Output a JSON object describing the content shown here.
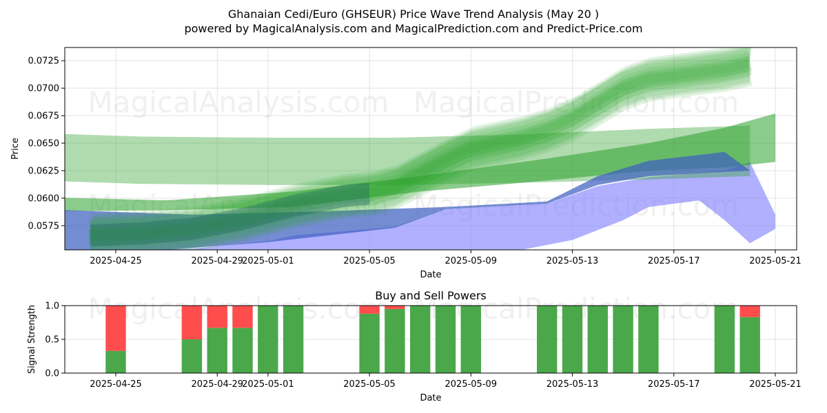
{
  "title_line1": "Ghanaian Cedi/Euro (GHSEUR) Price Wave Trend Analysis (May 20 )",
  "title_line2": "powered by MagicalAnalysis.com and MagicalPrediction.com and Predict-Price.com",
  "watermarks": [
    "MagicalAnalysis.com",
    "MagicalPrediction.com"
  ],
  "chart_data": [
    {
      "type": "area",
      "xlabel": "Date",
      "ylabel": "Price",
      "ylim": [
        0.0553,
        0.0737
      ],
      "grid": true,
      "x_ticks": [
        "2025-04-25",
        "2025-04-29",
        "2025-05-01",
        "2025-05-05",
        "2025-05-09",
        "2025-05-13",
        "2025-05-17",
        "2025-05-21"
      ],
      "y_ticks": [
        "0.0575",
        "0.0600",
        "0.0625",
        "0.0650",
        "0.0675",
        "0.0700",
        "0.0725"
      ],
      "colors": {
        "green_band": "#2ca02c",
        "blue_band": "#3f5fbf",
        "purple_band": "#8080ff"
      },
      "series": [
        {
          "color": "#2ca02c",
          "upper": [
            [
              "2025-04-22",
              0.0659
            ],
            [
              "2025-04-26",
              0.0656
            ],
            [
              "2025-05-01",
              0.0655
            ],
            [
              "2025-05-06",
              0.0655
            ],
            [
              "2025-05-11",
              0.0658
            ],
            [
              "2025-05-16",
              0.0663
            ],
            [
              "2025-05-20",
              0.0666
            ]
          ],
          "lower": [
            [
              "2025-04-22",
              0.0616
            ],
            [
              "2025-04-26",
              0.0613
            ],
            [
              "2025-05-01",
              0.0612
            ],
            [
              "2025-05-06",
              0.0612
            ],
            [
              "2025-05-11",
              0.0614
            ],
            [
              "2025-05-16",
              0.0617
            ],
            [
              "2025-05-20",
              0.062
            ]
          ]
        },
        {
          "color": "#2ca02c",
          "upper": [
            [
              "2025-04-22",
              0.0601
            ],
            [
              "2025-04-27",
              0.0598
            ],
            [
              "2025-05-02",
              0.0606
            ],
            [
              "2025-05-07",
              0.062
            ],
            [
              "2025-05-12",
              0.0636
            ],
            [
              "2025-05-16",
              0.065
            ],
            [
              "2025-05-19",
              0.0664
            ],
            [
              "2025-05-21",
              0.0677
            ]
          ],
          "lower": [
            [
              "2025-04-22",
              0.0588
            ],
            [
              "2025-04-27",
              0.0589
            ],
            [
              "2025-05-02",
              0.0592
            ],
            [
              "2025-05-07",
              0.0606
            ],
            [
              "2025-05-12",
              0.0616
            ],
            [
              "2025-05-16",
              0.0625
            ],
            [
              "2025-05-19",
              0.0628
            ],
            [
              "2025-05-21",
              0.0633
            ]
          ]
        },
        {
          "color": "#3f5fbf",
          "upper": [
            [
              "2025-04-22",
              0.059
            ],
            [
              "2025-04-28",
              0.0585
            ],
            [
              "2025-05-03",
              0.0588
            ],
            [
              "2025-05-08",
              0.0592
            ],
            [
              "2025-05-12",
              0.0597
            ],
            [
              "2025-05-14",
              0.062
            ],
            [
              "2025-05-16",
              0.0634
            ],
            [
              "2025-05-19",
              0.0642
            ],
            [
              "2025-05-20",
              0.0625
            ]
          ],
          "lower": [
            [
              "2025-04-22",
              0.0553
            ],
            [
              "2025-04-27",
              0.0553
            ],
            [
              "2025-05-01",
              0.056
            ],
            [
              "2025-05-06",
              0.0573
            ],
            [
              "2025-05-08",
              0.059
            ],
            [
              "2025-05-12",
              0.0595
            ],
            [
              "2025-05-14",
              0.0612
            ],
            [
              "2025-05-16",
              0.062
            ],
            [
              "2025-05-19",
              0.0624
            ]
          ]
        },
        {
          "color": "#8080ff",
          "upper": [
            [
              "2025-04-26",
              0.0553
            ],
            [
              "2025-04-28",
              0.0554
            ],
            [
              "2025-05-01",
              0.0561
            ],
            [
              "2025-05-02",
              0.0566
            ],
            [
              "2025-05-06",
              0.0574
            ],
            [
              "2025-05-08",
              0.059
            ],
            [
              "2025-05-12",
              0.0595
            ],
            [
              "2025-05-14",
              0.0611
            ],
            [
              "2025-05-16",
              0.0619
            ],
            [
              "2025-05-19",
              0.0625
            ],
            [
              "2025-05-20",
              0.0633
            ],
            [
              "2025-05-21",
              0.0585
            ]
          ],
          "lower": [
            [
              "2025-05-11",
              0.0553
            ],
            [
              "2025-05-13",
              0.0562
            ],
            [
              "2025-05-15",
              0.058
            ],
            [
              "2025-05-16",
              0.0592
            ],
            [
              "2025-05-18",
              0.0598
            ],
            [
              "2025-05-19",
              0.058
            ],
            [
              "2025-05-20",
              0.0559
            ],
            [
              "2025-05-21",
              0.0572
            ]
          ]
        }
      ],
      "trend_band": {
        "color": "#2ca02c",
        "center": [
          [
            "2025-04-24",
            0.0566
          ],
          [
            "2025-04-26",
            0.0568
          ],
          [
            "2025-04-28",
            0.0572
          ],
          [
            "2025-04-30",
            0.0581
          ],
          [
            "2025-05-02",
            0.0593
          ],
          [
            "2025-05-04",
            0.0602
          ],
          [
            "2025-05-05",
            0.0604
          ],
          [
            "2025-05-06",
            0.061
          ],
          [
            "2025-05-07",
            0.0622
          ],
          [
            "2025-05-08",
            0.0634
          ],
          [
            "2025-05-09",
            0.0645
          ],
          [
            "2025-05-10",
            0.065
          ],
          [
            "2025-05-11",
            0.0655
          ],
          [
            "2025-05-12",
            0.0662
          ],
          [
            "2025-05-13",
            0.0672
          ],
          [
            "2025-05-14",
            0.0686
          ],
          [
            "2025-05-15",
            0.07
          ],
          [
            "2025-05-16",
            0.0708
          ],
          [
            "2025-05-17",
            0.0711
          ],
          [
            "2025-05-18",
            0.0714
          ],
          [
            "2025-05-19",
            0.0717
          ],
          [
            "2025-05-20",
            0.0722
          ]
        ]
      }
    },
    {
      "type": "bar",
      "title": "Buy and Sell Powers",
      "xlabel": "Date",
      "ylabel": "Signal Strength",
      "ylim": [
        0,
        1
      ],
      "grid": true,
      "x_ticks": [
        "2025-04-25",
        "2025-04-29",
        "2025-05-01",
        "2025-05-05",
        "2025-05-09",
        "2025-05-13",
        "2025-05-17",
        "2025-05-21"
      ],
      "y_ticks": [
        "0.0",
        "0.5",
        "1.0"
      ],
      "colors": {
        "buy": "#4aa84a",
        "sell": "#ff4d4d"
      },
      "categories": [
        "2025-04-25",
        "2025-04-28",
        "2025-04-29",
        "2025-04-30",
        "2025-05-01",
        "2025-05-02",
        "2025-05-05",
        "2025-05-06",
        "2025-05-07",
        "2025-05-08",
        "2025-05-09",
        "2025-05-12",
        "2025-05-13",
        "2025-05-14",
        "2025-05-15",
        "2025-05-16",
        "2025-05-19",
        "2025-05-20"
      ],
      "buy": [
        0.33,
        0.5,
        0.67,
        0.67,
        1.0,
        1.0,
        0.88,
        0.95,
        1.0,
        1.0,
        1.0,
        1.0,
        1.0,
        1.0,
        1.0,
        1.0,
        1.0,
        0.83
      ],
      "sell": [
        0.67,
        0.5,
        0.33,
        0.33,
        0.0,
        0.0,
        0.12,
        0.05,
        0.0,
        0.0,
        0.0,
        0.0,
        0.0,
        0.0,
        0.0,
        0.0,
        0.0,
        0.17
      ]
    }
  ]
}
